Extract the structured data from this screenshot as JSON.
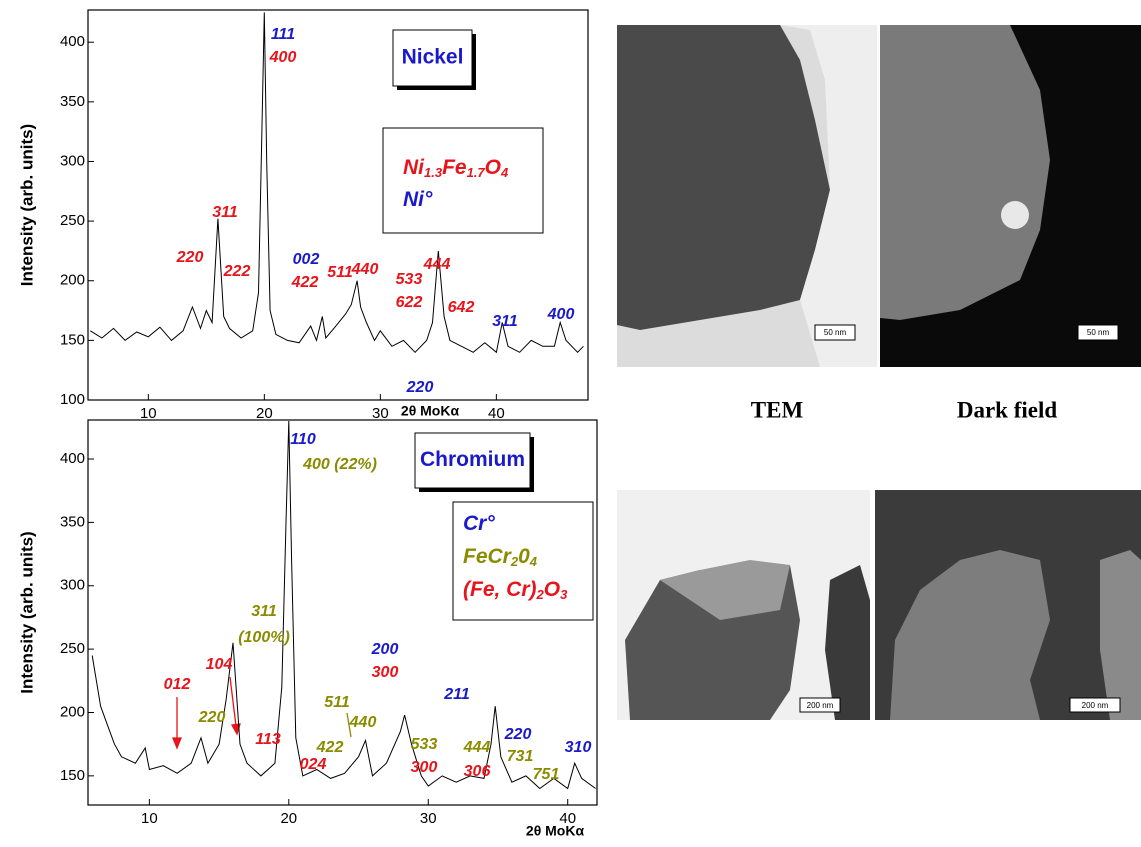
{
  "chart_data": [
    {
      "type": "line",
      "title": "Nickel",
      "y_label": "Intensity (arb. units)",
      "x_label": "2θ MoKα",
      "xlim": [
        4.8,
        47.9
      ],
      "ylim": [
        100,
        427
      ],
      "xticks": [
        10,
        20,
        30,
        40
      ],
      "yticks": [
        100,
        150,
        200,
        250,
        300,
        350,
        400
      ],
      "x": [
        5,
        6,
        7,
        8,
        9,
        10,
        11,
        12,
        13,
        13.8,
        14.5,
        15,
        15.5,
        16,
        16.5,
        17,
        18,
        19,
        19.5,
        19.8,
        20,
        20.2,
        20.5,
        21,
        22,
        23,
        24,
        24.5,
        25,
        25.3,
        26,
        27,
        27.5,
        28,
        28.3,
        28.8,
        29.5,
        30,
        31,
        32,
        33,
        34,
        34.5,
        35,
        35.5,
        36,
        37,
        38,
        39,
        40,
        40.5,
        41,
        42,
        43,
        44,
        45,
        45.5,
        46,
        47,
        47.5
      ],
      "series": [
        {
          "color": "#000000",
          "values": [
            158,
            152,
            160,
            150,
            157,
            153,
            161,
            150,
            158,
            178,
            160,
            175,
            165,
            252,
            170,
            160,
            152,
            158,
            190,
            330,
            425,
            300,
            175,
            155,
            150,
            148,
            162,
            150,
            170,
            152,
            160,
            172,
            180,
            200,
            178,
            165,
            150,
            158,
            145,
            150,
            140,
            150,
            165,
            225,
            170,
            150,
            145,
            140,
            148,
            140,
            165,
            145,
            140,
            150,
            145,
            145,
            165,
            150,
            140,
            145
          ]
        }
      ],
      "phases": [
        {
          "color": "#e8141b",
          "parts": [
            "Ni",
            "1.3",
            "Fe",
            "1.7",
            "O",
            "4"
          ]
        },
        {
          "color": "#1a1acc",
          "parts": [
            "Ni°"
          ]
        }
      ],
      "annotations": [
        {
          "text": "111",
          "color": "#1a1acc"
        },
        {
          "text": "400",
          "color": "#e8141b"
        },
        {
          "text": "311",
          "color": "#e8141b"
        },
        {
          "text": "220",
          "color": "#e8141b"
        },
        {
          "text": "222",
          "color": "#e8141b"
        },
        {
          "text": "002",
          "color": "#1a1acc"
        },
        {
          "text": "422",
          "color": "#e8141b"
        },
        {
          "text": "511",
          "color": "#e8141b"
        },
        {
          "text": "440",
          "color": "#e8141b"
        },
        {
          "text": "533",
          "color": "#e8141b"
        },
        {
          "text": "622",
          "color": "#e8141b"
        },
        {
          "text": "444",
          "color": "#e8141b"
        },
        {
          "text": "642",
          "color": "#e8141b"
        },
        {
          "text": "311",
          "color": "#1a1acc"
        },
        {
          "text": "400",
          "color": "#1a1acc"
        },
        {
          "text": "220",
          "color": "#1a1acc"
        }
      ]
    },
    {
      "type": "line",
      "title": "Chromium",
      "y_label": "Intensity (arb. units)",
      "x_label": "2θ MoKα",
      "xlim": [
        5.6,
        42.1
      ],
      "ylim": [
        127,
        430.8
      ],
      "xticks": [
        10,
        20,
        30,
        40
      ],
      "yticks": [
        150,
        200,
        250,
        300,
        350,
        400
      ],
      "x": [
        5.9,
        6.2,
        6.5,
        7,
        7.5,
        8,
        9,
        9.7,
        10,
        11,
        12,
        13,
        13.7,
        14.2,
        15,
        15.5,
        16,
        16.5,
        17,
        18,
        19,
        19.5,
        19.8,
        20,
        20.2,
        20.5,
        21,
        22,
        23,
        24,
        25,
        25.5,
        26,
        27,
        28,
        28.3,
        28.8,
        29.5,
        30,
        31,
        32,
        33,
        34,
        34.5,
        34.8,
        35.2,
        36,
        37,
        38,
        39,
        40,
        40.5,
        41,
        42
      ],
      "series": [
        {
          "color": "#000000",
          "values": [
            245,
            225,
            205,
            190,
            175,
            165,
            160,
            172,
            155,
            158,
            152,
            160,
            180,
            160,
            175,
            210,
            255,
            175,
            160,
            150,
            160,
            220,
            350,
            430,
            320,
            180,
            150,
            155,
            148,
            152,
            165,
            178,
            150,
            160,
            185,
            198,
            175,
            150,
            142,
            150,
            145,
            150,
            148,
            175,
            205,
            165,
            145,
            150,
            140,
            148,
            140,
            160,
            148,
            140
          ]
        }
      ],
      "phases": [
        {
          "color": "#1a1acc",
          "parts": [
            "Cr°"
          ]
        },
        {
          "color": "#8b8b00",
          "parts": [
            "FeCr",
            "2",
            "0",
            "4"
          ]
        },
        {
          "color": "#e8141b",
          "parts": [
            "(Fe, Cr)",
            "2",
            "O",
            "3"
          ]
        }
      ],
      "annotations": [
        {
          "text": "110",
          "color": "#1a1acc"
        },
        {
          "text": "400 (22%)",
          "color": "#8b8b00"
        },
        {
          "text": "311",
          "color": "#8b8b00"
        },
        {
          "text": "(100%)",
          "color": "#8b8b00"
        },
        {
          "text": "012",
          "color": "#e8141b"
        },
        {
          "text": "104",
          "color": "#e8141b"
        },
        {
          "text": "220",
          "color": "#8b8b00"
        },
        {
          "text": "113",
          "color": "#e8141b"
        },
        {
          "text": "024",
          "color": "#e8141b"
        },
        {
          "text": "422",
          "color": "#8b8b00"
        },
        {
          "text": "511",
          "color": "#8b8b00"
        },
        {
          "text": "440",
          "color": "#8b8b00"
        },
        {
          "text": "200",
          "color": "#1a1acc"
        },
        {
          "text": "300",
          "color": "#e8141b"
        },
        {
          "text": "211",
          "color": "#1a1acc"
        },
        {
          "text": "533",
          "color": "#8b8b00"
        },
        {
          "text": "300",
          "color": "#e8141b"
        },
        {
          "text": "444",
          "color": "#8b8b00"
        },
        {
          "text": "306",
          "color": "#e8141b"
        },
        {
          "text": "220",
          "color": "#1a1acc"
        },
        {
          "text": "731",
          "color": "#8b8b00"
        },
        {
          "text": "751",
          "color": "#8b8b00"
        },
        {
          "text": "310",
          "color": "#1a1acc"
        }
      ]
    }
  ],
  "images": {
    "captions": [
      "TEM",
      "Dark field"
    ],
    "scale_bars": [
      "50 nm",
      "50 nm",
      "200 nm",
      "200 nm"
    ]
  }
}
